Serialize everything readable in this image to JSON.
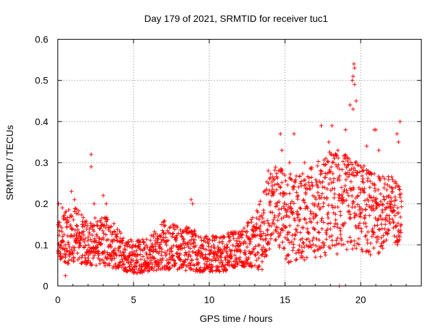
{
  "chart_data": {
    "type": "scatter",
    "title": "Day 179 of 2021, SRMTID for receiver tuc1",
    "xlabel": "GPS time / hours",
    "ylabel": "SRMTID / TECUs",
    "xlim": [
      0,
      24
    ],
    "ylim": [
      0,
      0.6
    ],
    "xticks": [
      0,
      5,
      10,
      15,
      20
    ],
    "yticks": [
      0,
      0.1,
      0.2,
      0.3,
      0.4,
      0.5,
      0.6
    ],
    "ytick_labels": [
      "0",
      "0.1",
      "0.2",
      "0.3",
      "0.4",
      "0.5",
      "0.6"
    ],
    "grid": true,
    "marker": "+",
    "color": "#ff0000",
    "series": [
      {
        "name": "SRMTID",
        "profile_x": [
          0,
          0.5,
          1,
          2,
          3,
          4,
          5,
          6,
          7,
          8,
          9,
          10,
          11,
          12,
          13,
          13.5,
          14,
          14.5,
          15,
          16,
          17,
          18,
          19,
          20,
          21,
          22,
          22.7
        ],
        "profile_low": [
          0.07,
          0.05,
          0.06,
          0.05,
          0.05,
          0.04,
          0.03,
          0.035,
          0.04,
          0.04,
          0.035,
          0.035,
          0.035,
          0.05,
          0.04,
          0.04,
          0.08,
          0.1,
          0.05,
          0.06,
          0.07,
          0.07,
          0.08,
          0.08,
          0.07,
          0.1,
          0.1
        ],
        "profile_high": [
          0.17,
          0.18,
          0.2,
          0.16,
          0.18,
          0.14,
          0.11,
          0.12,
          0.16,
          0.15,
          0.14,
          0.12,
          0.13,
          0.14,
          0.17,
          0.22,
          0.28,
          0.3,
          0.28,
          0.27,
          0.3,
          0.33,
          0.32,
          0.3,
          0.27,
          0.27,
          0.25
        ],
        "outliers": [
          [
            0.05,
            0.2
          ],
          [
            0.3,
            0.19
          ],
          [
            0.5,
            0.025
          ],
          [
            0.9,
            0.23
          ],
          [
            1.1,
            0.21
          ],
          [
            2.2,
            0.32
          ],
          [
            2.2,
            0.29
          ],
          [
            2.4,
            0.2
          ],
          [
            3.0,
            0.22
          ],
          [
            3.2,
            0.2
          ],
          [
            8.8,
            0.21
          ],
          [
            8.9,
            0.2
          ],
          [
            13.9,
            0.28
          ],
          [
            14.7,
            0.37
          ],
          [
            14.8,
            0.33
          ],
          [
            15.3,
            0.3
          ],
          [
            15.6,
            0.37
          ],
          [
            16.3,
            0.3
          ],
          [
            17.4,
            0.39
          ],
          [
            17.9,
            0.35
          ],
          [
            18.1,
            0.39
          ],
          [
            18.5,
            0.33
          ],
          [
            19.0,
            0.38
          ],
          [
            19.3,
            0.44
          ],
          [
            19.45,
            0.5
          ],
          [
            19.5,
            0.51
          ],
          [
            19.55,
            0.54
          ],
          [
            19.6,
            0.53
          ],
          [
            19.6,
            0.49
          ],
          [
            19.7,
            0.45
          ],
          [
            19.5,
            0.43
          ],
          [
            20.4,
            0.34
          ],
          [
            20.9,
            0.38
          ],
          [
            21.0,
            0.38
          ],
          [
            21.2,
            0.33
          ],
          [
            22.4,
            0.37
          ],
          [
            22.6,
            0.4
          ],
          [
            22.5,
            0.35
          ],
          [
            18.6,
            0.0
          ]
        ]
      }
    ]
  }
}
